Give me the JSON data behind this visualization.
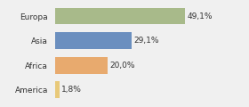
{
  "categories": [
    "America",
    "Africa",
    "Asia",
    "Europa"
  ],
  "values": [
    1.8,
    20.0,
    29.1,
    49.1
  ],
  "labels": [
    "1,8%",
    "20,0%",
    "29,1%",
    "49,1%"
  ],
  "colors": [
    "#e8c97a",
    "#e8aa6e",
    "#6b8fbf",
    "#a8ba8a"
  ],
  "background_color": "#f0f0f0",
  "xlim": [
    0,
    62
  ],
  "bar_height": 0.68,
  "label_fontsize": 6.5,
  "tick_fontsize": 6.5
}
